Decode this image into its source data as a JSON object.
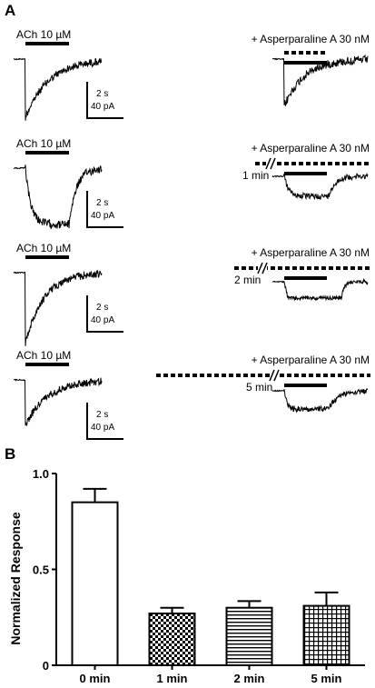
{
  "panel_a": {
    "letter": "A",
    "rows": [
      {
        "control_label": "ACh 10 µM",
        "treatment_label": "+ Asperparaline A 30 nM",
        "time_label": "",
        "scale_time": "2 s",
        "scale_current": "40 pA"
      },
      {
        "control_label": "ACh 10 µM",
        "treatment_label": "+ Asperparaline A 30 nM",
        "time_label": "1 min",
        "scale_time": "2 s",
        "scale_current": "40 pA"
      },
      {
        "control_label": "ACh 10 µM",
        "treatment_label": "+ Asperparaline A 30 nM",
        "time_label": "2 min",
        "scale_time": "2 s",
        "scale_current": "40 pA"
      },
      {
        "control_label": "ACh 10 µM",
        "treatment_label": "+ Asperparaline A 30 nM",
        "time_label": "5 min",
        "scale_time": "2 s",
        "scale_current": "40 pA"
      }
    ]
  },
  "chart_data": {
    "panel_letter": "B",
    "type": "bar",
    "categories": [
      "0 min",
      "1 min",
      "2 min",
      "5 min"
    ],
    "values": [
      0.85,
      0.27,
      0.3,
      0.31
    ],
    "errors": [
      0.07,
      0.03,
      0.035,
      0.07
    ],
    "fill_patterns": [
      "white",
      "checker",
      "horizontal-lines",
      "grid"
    ],
    "ylabel": "Normalized Response",
    "ylim": [
      0,
      1.0
    ],
    "yticks": [
      0,
      0.5,
      1.0
    ],
    "ytick_labels": [
      "0",
      "0.5",
      "1.0"
    ]
  }
}
